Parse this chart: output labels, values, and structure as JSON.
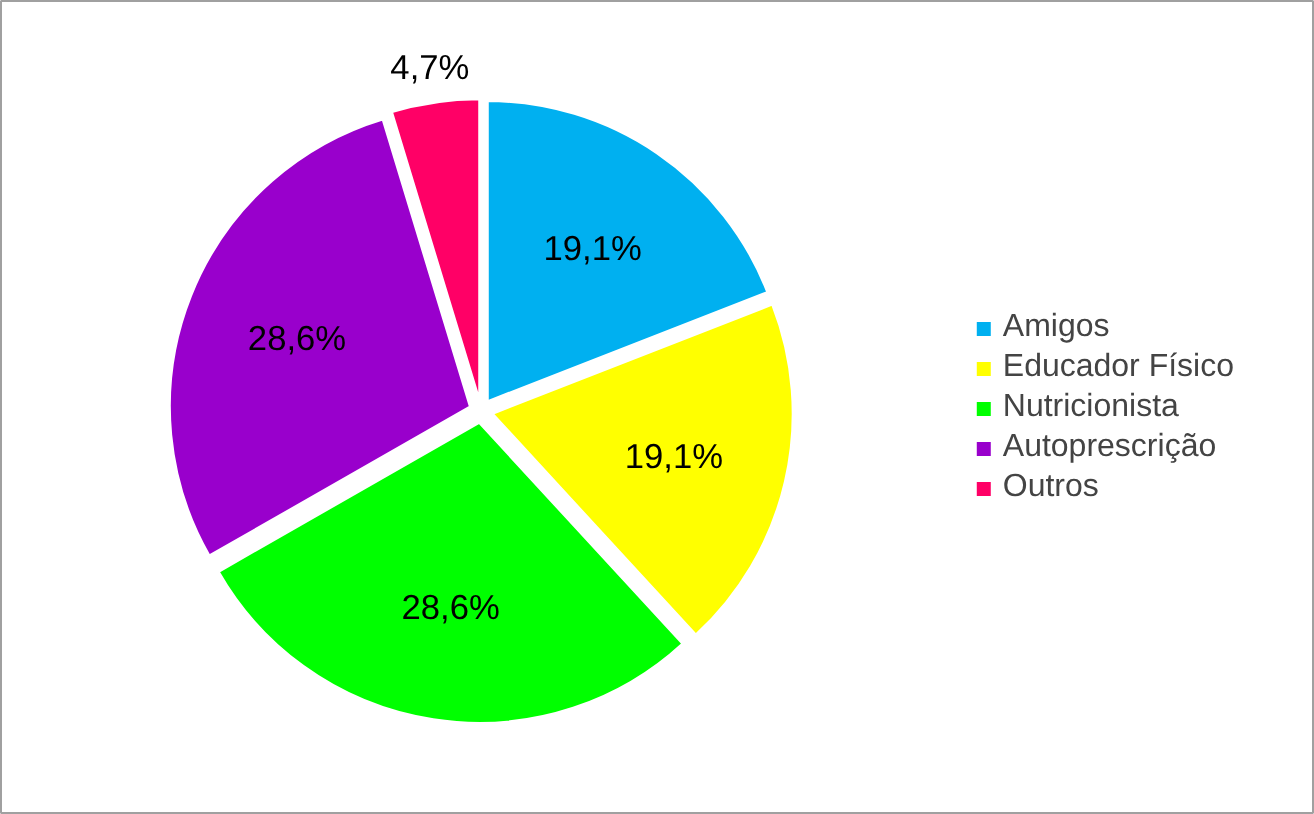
{
  "chart_data": {
    "type": "pie",
    "categories": [
      "Amigos",
      "Educador Físico",
      "Nutricionista",
      "Autoprescrição",
      "Outros"
    ],
    "values": [
      19.1,
      19.1,
      28.6,
      28.6,
      4.7
    ],
    "colors": [
      "#00b0f0",
      "#ffff00",
      "#00ff00",
      "#9900cc",
      "#ff0066"
    ],
    "value_labels": [
      "19,1%",
      "19,1%",
      "28,6%",
      "28,6%",
      "4,7%"
    ],
    "legend": "right"
  }
}
